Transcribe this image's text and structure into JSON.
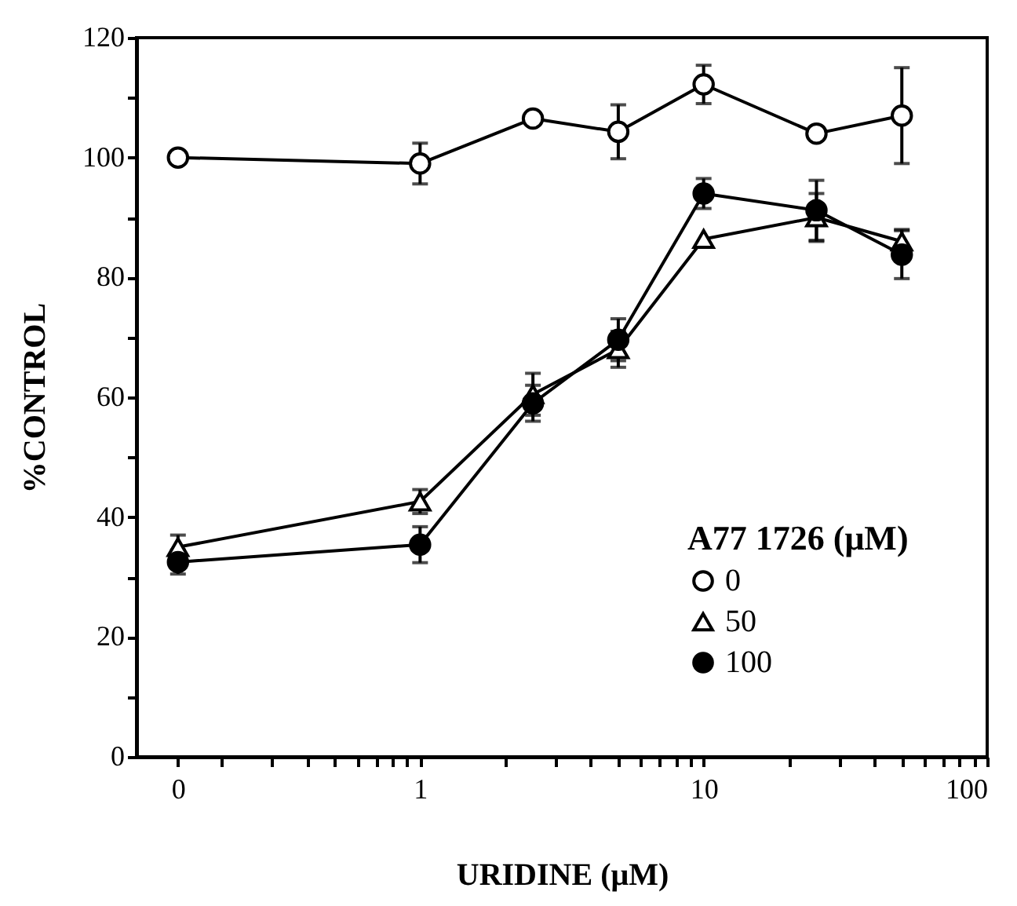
{
  "chart_data": {
    "type": "line",
    "xlabel": "URIDINE (μM)",
    "ylabel": "%CONTROL",
    "legend_title": "A77 1726 (μM)",
    "legend": "bottom right",
    "grid": false,
    "log": "x",
    "line_style": "solid",
    "x": [
      0.14,
      1,
      2.5,
      5,
      10,
      25,
      50
    ],
    "xlim": [
      0.1,
      100
    ],
    "xticks": [
      {
        "value": 0.14,
        "label": "0"
      },
      {
        "value": 0.2,
        "label": null
      },
      {
        "value": 0.3,
        "label": null
      },
      {
        "value": 0.4,
        "label": null
      },
      {
        "value": 0.5,
        "label": null
      },
      {
        "value": 0.6,
        "label": null
      },
      {
        "value": 0.7,
        "label": null
      },
      {
        "value": 0.8,
        "label": null
      },
      {
        "value": 0.9,
        "label": null
      },
      1,
      {
        "value": 2,
        "label": null
      },
      {
        "value": 3,
        "label": null
      },
      {
        "value": 4,
        "label": null
      },
      {
        "value": 5,
        "label": null
      },
      {
        "value": 6,
        "label": null
      },
      {
        "value": 7,
        "label": null
      },
      {
        "value": 8,
        "label": null
      },
      {
        "value": 9,
        "label": null
      },
      10,
      {
        "value": 20,
        "label": null
      },
      {
        "value": 30,
        "label": null
      },
      {
        "value": 40,
        "label": null
      },
      {
        "value": 50,
        "label": null
      },
      {
        "value": 60,
        "label": null
      },
      {
        "value": 70,
        "label": null
      },
      {
        "value": 80,
        "label": null
      },
      {
        "value": 90,
        "label": null
      },
      100
    ],
    "ylim": [
      0,
      120
    ],
    "yticks": [
      0,
      {
        "value": 10,
        "label": null
      },
      20,
      {
        "value": 30,
        "label": null
      },
      40,
      {
        "value": 50,
        "label": null
      },
      60,
      {
        "value": 70,
        "label": null
      },
      80,
      {
        "value": 90,
        "label": null
      },
      100,
      {
        "value": 110,
        "label": null
      },
      120
    ],
    "series": [
      {
        "name": "0",
        "color": "#000000",
        "marker": "circle",
        "values": [
          100,
          99,
          106.5,
          104.3,
          112.2,
          104,
          107
        ],
        "errors": [
          null,
          3.4,
          null,
          4.5,
          3.2,
          null,
          8
        ]
      },
      {
        "name": "50",
        "color": "#000000",
        "marker": "triangle",
        "values": [
          35,
          42.6,
          60.5,
          68,
          86.4,
          90,
          86
        ],
        "errors": [
          2,
          2,
          3.5,
          3,
          null,
          4,
          2
        ]
      },
      {
        "name": "100",
        "color": "#000000",
        "marker": "circle",
        "values": [
          32.5,
          35.4,
          59,
          69.6,
          94,
          91.2,
          83.8
        ],
        "errors": [
          2,
          3,
          3,
          3.5,
          2.5,
          5,
          4
        ]
      }
    ]
  }
}
